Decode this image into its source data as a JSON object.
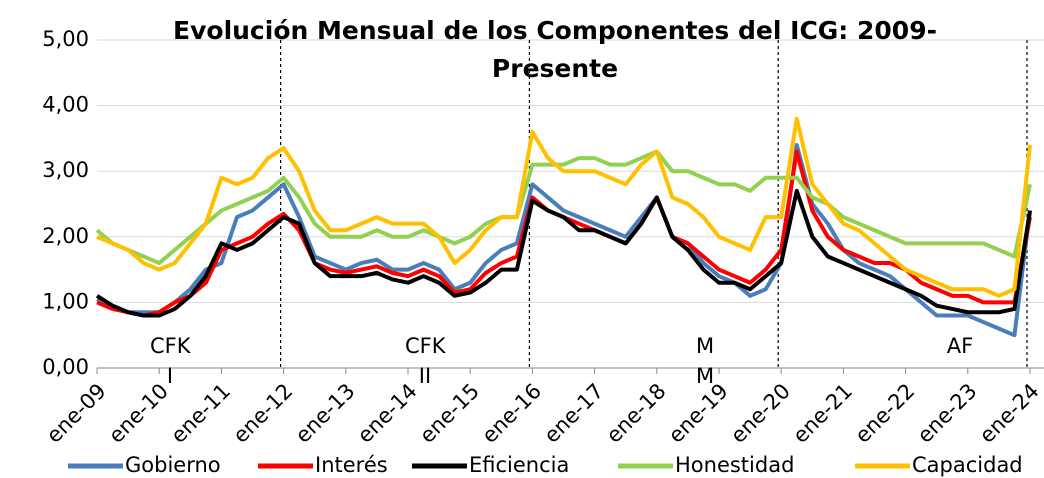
{
  "chart_data": {
    "type": "line",
    "title": "Evolución Mensual de los Componentes del ICG: 2009-Presente",
    "categories": [
      "ene-09",
      null,
      null,
      null,
      "ene-10",
      null,
      null,
      null,
      "ene-11",
      null,
      null,
      null,
      "ene-12",
      null,
      null,
      null,
      "ene-13",
      null,
      null,
      null,
      "ene-14",
      null,
      null,
      null,
      "ene-15",
      null,
      null,
      null,
      "ene-16",
      null,
      null,
      null,
      "ene-17",
      null,
      null,
      null,
      "ene-18",
      null,
      null,
      null,
      "ene-19",
      null,
      null,
      null,
      "ene-20",
      null,
      null,
      null,
      "ene-21",
      null,
      null,
      null,
      "ene-22",
      null,
      null,
      null,
      "ene-23",
      null,
      null,
      null,
      "ene-24"
    ],
    "series": [
      {
        "name": "Gobierno",
        "color": "#4a7ebb",
        "values": [
          1.05,
          0.95,
          0.85,
          0.85,
          0.85,
          1.0,
          1.2,
          1.5,
          1.6,
          2.3,
          2.4,
          2.6,
          2.8,
          2.3,
          1.7,
          1.6,
          1.5,
          1.6,
          1.65,
          1.5,
          1.5,
          1.6,
          1.5,
          1.2,
          1.3,
          1.6,
          1.8,
          1.9,
          2.8,
          2.6,
          2.4,
          2.3,
          2.2,
          2.1,
          2.0,
          2.3,
          2.6,
          2.0,
          1.9,
          1.6,
          1.4,
          1.3,
          1.1,
          1.2,
          1.6,
          3.4,
          2.5,
          2.2,
          1.8,
          1.6,
          1.5,
          1.4,
          1.2,
          1.0,
          0.8,
          0.8,
          0.8,
          0.7,
          0.6,
          0.5,
          2.4
        ]
      },
      {
        "name": "Interés",
        "color": "#ff0000",
        "values": [
          1.0,
          0.9,
          0.85,
          0.8,
          0.85,
          1.0,
          1.1,
          1.3,
          1.8,
          1.9,
          2.0,
          2.2,
          2.35,
          2.1,
          1.6,
          1.5,
          1.45,
          1.5,
          1.55,
          1.45,
          1.4,
          1.5,
          1.4,
          1.15,
          1.2,
          1.45,
          1.6,
          1.7,
          2.6,
          2.4,
          2.3,
          2.2,
          2.1,
          2.0,
          1.9,
          2.2,
          2.6,
          2.0,
          1.9,
          1.7,
          1.5,
          1.4,
          1.3,
          1.5,
          1.8,
          3.3,
          2.4,
          2.0,
          1.8,
          1.7,
          1.6,
          1.6,
          1.5,
          1.3,
          1.2,
          1.1,
          1.1,
          1.0,
          1.0,
          1.0,
          2.3
        ]
      },
      {
        "name": "Eficiencia",
        "color": "#000000",
        "values": [
          1.1,
          0.95,
          0.85,
          0.8,
          0.8,
          0.9,
          1.1,
          1.4,
          1.9,
          1.8,
          1.9,
          2.1,
          2.3,
          2.2,
          1.6,
          1.4,
          1.4,
          1.4,
          1.45,
          1.35,
          1.3,
          1.4,
          1.3,
          1.1,
          1.15,
          1.3,
          1.5,
          1.5,
          2.55,
          2.4,
          2.3,
          2.1,
          2.1,
          2.0,
          1.9,
          2.2,
          2.6,
          2.0,
          1.8,
          1.5,
          1.3,
          1.3,
          1.2,
          1.4,
          1.6,
          2.7,
          2.0,
          1.7,
          1.6,
          1.5,
          1.4,
          1.3,
          1.2,
          1.1,
          0.95,
          0.9,
          0.85,
          0.85,
          0.85,
          0.9,
          2.4
        ]
      },
      {
        "name": "Honestidad",
        "color": "#92d050",
        "values": [
          2.1,
          1.9,
          1.8,
          1.7,
          1.6,
          1.8,
          2.0,
          2.2,
          2.4,
          2.5,
          2.6,
          2.7,
          2.9,
          2.6,
          2.2,
          2.0,
          2.0,
          2.0,
          2.1,
          2.0,
          2.0,
          2.1,
          2.0,
          1.9,
          2.0,
          2.2,
          2.3,
          2.3,
          3.1,
          3.1,
          3.1,
          3.2,
          3.2,
          3.1,
          3.1,
          3.2,
          3.3,
          3.0,
          3.0,
          2.9,
          2.8,
          2.8,
          2.7,
          2.9,
          2.9,
          2.9,
          2.6,
          2.5,
          2.3,
          2.2,
          2.1,
          2.0,
          1.9,
          1.9,
          1.9,
          1.9,
          1.9,
          1.9,
          1.8,
          1.7,
          2.8
        ]
      },
      {
        "name": "Capacidad",
        "color": "#ffc000",
        "values": [
          2.0,
          1.9,
          1.8,
          1.6,
          1.5,
          1.6,
          1.9,
          2.2,
          2.9,
          2.8,
          2.9,
          3.2,
          3.35,
          3.0,
          2.4,
          2.1,
          2.1,
          2.2,
          2.3,
          2.2,
          2.2,
          2.2,
          2.0,
          1.6,
          1.8,
          2.1,
          2.3,
          2.3,
          3.6,
          3.2,
          3.0,
          3.0,
          3.0,
          2.9,
          2.8,
          3.1,
          3.3,
          2.6,
          2.5,
          2.3,
          2.0,
          1.9,
          1.8,
          2.3,
          2.3,
          3.8,
          2.8,
          2.5,
          2.2,
          2.1,
          1.9,
          1.7,
          1.5,
          1.4,
          1.3,
          1.2,
          1.2,
          1.2,
          1.1,
          1.2,
          3.4
        ]
      }
    ],
    "annotations": [
      "CFK I",
      "CFK II",
      "M M",
      "AF"
    ],
    "ylim": [
      0,
      5
    ],
    "yticks": [
      {
        "value": 0,
        "label": "0,00"
      },
      {
        "value": 1,
        "label": "1,00"
      },
      {
        "value": 2,
        "label": "2,00"
      },
      {
        "value": 3,
        "label": "3,00"
      },
      {
        "value": 4,
        "label": "4,00"
      },
      {
        "value": 5,
        "label": "5,00"
      }
    ],
    "grid": true,
    "legend": "bottom"
  }
}
